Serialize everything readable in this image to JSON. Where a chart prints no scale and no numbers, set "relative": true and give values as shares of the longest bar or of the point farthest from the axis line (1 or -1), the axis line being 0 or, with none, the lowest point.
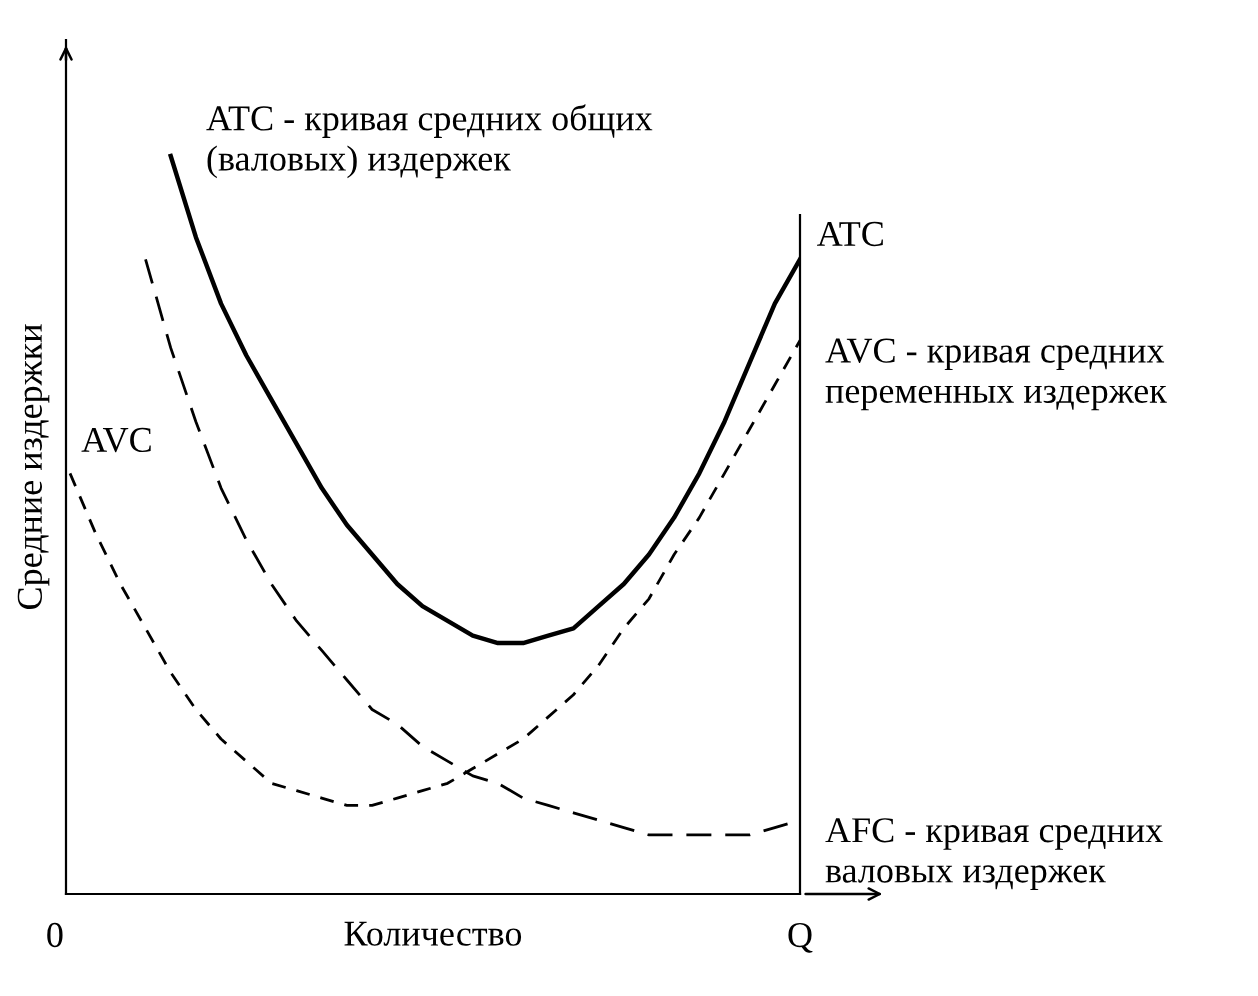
{
  "chart_data": {
    "type": "line",
    "relative": true,
    "xlabel": "Количество",
    "ylabel": "Средние издержки",
    "categories": [
      null,
      null,
      null,
      null,
      null,
      null,
      null,
      null,
      null,
      null,
      null,
      null,
      null,
      null,
      null,
      null,
      null,
      null,
      null,
      null,
      null,
      null,
      null,
      null,
      null,
      null,
      null,
      null,
      null,
      null
    ],
    "grid": false,
    "legend": false,
    "marker": "none",
    "annotations": [
      "ATC",
      "AVC",
      "0",
      "Q"
    ],
    "series": [
      {
        "name": "ATC - кривая средних общих (валовых) издержек",
        "color": "#000000",
        "line_style": "solid",
        "values": [
          null,
          null,
          null,
          null,
          1.0,
          0.89,
          0.8,
          0.73,
          0.67,
          0.61,
          0.55,
          0.5,
          0.46,
          0.42,
          0.39,
          0.37,
          0.35,
          0.34,
          0.34,
          0.35,
          0.36,
          0.39,
          0.42,
          0.46,
          0.51,
          0.57,
          0.64,
          0.72,
          0.8,
          0.86
        ]
      },
      {
        "name": "AVC - кривая средних переменных издержек",
        "color": "#000000",
        "line_style": "dashed",
        "values": [
          0.57,
          0.49,
          0.42,
          0.36,
          0.3,
          0.25,
          0.21,
          0.18,
          0.15,
          0.14,
          0.13,
          0.12,
          0.12,
          0.13,
          0.14,
          0.15,
          0.17,
          0.19,
          0.21,
          0.24,
          0.27,
          0.31,
          0.36,
          0.4,
          0.46,
          0.51,
          0.57,
          0.63,
          0.69,
          0.75
        ]
      },
      {
        "name": "AFC - кривая средних валовых издержек",
        "color": "#000000",
        "line_style": "dashed",
        "values": [
          null,
          null,
          null,
          0.86,
          0.74,
          0.64,
          0.55,
          0.48,
          0.42,
          0.37,
          0.33,
          0.29,
          0.25,
          0.23,
          0.2,
          0.18,
          0.16,
          0.15,
          0.13,
          0.12,
          0.11,
          0.1,
          0.09,
          0.08,
          0.08,
          0.08,
          0.08,
          0.08,
          0.09,
          0.1
        ]
      }
    ]
  }
}
